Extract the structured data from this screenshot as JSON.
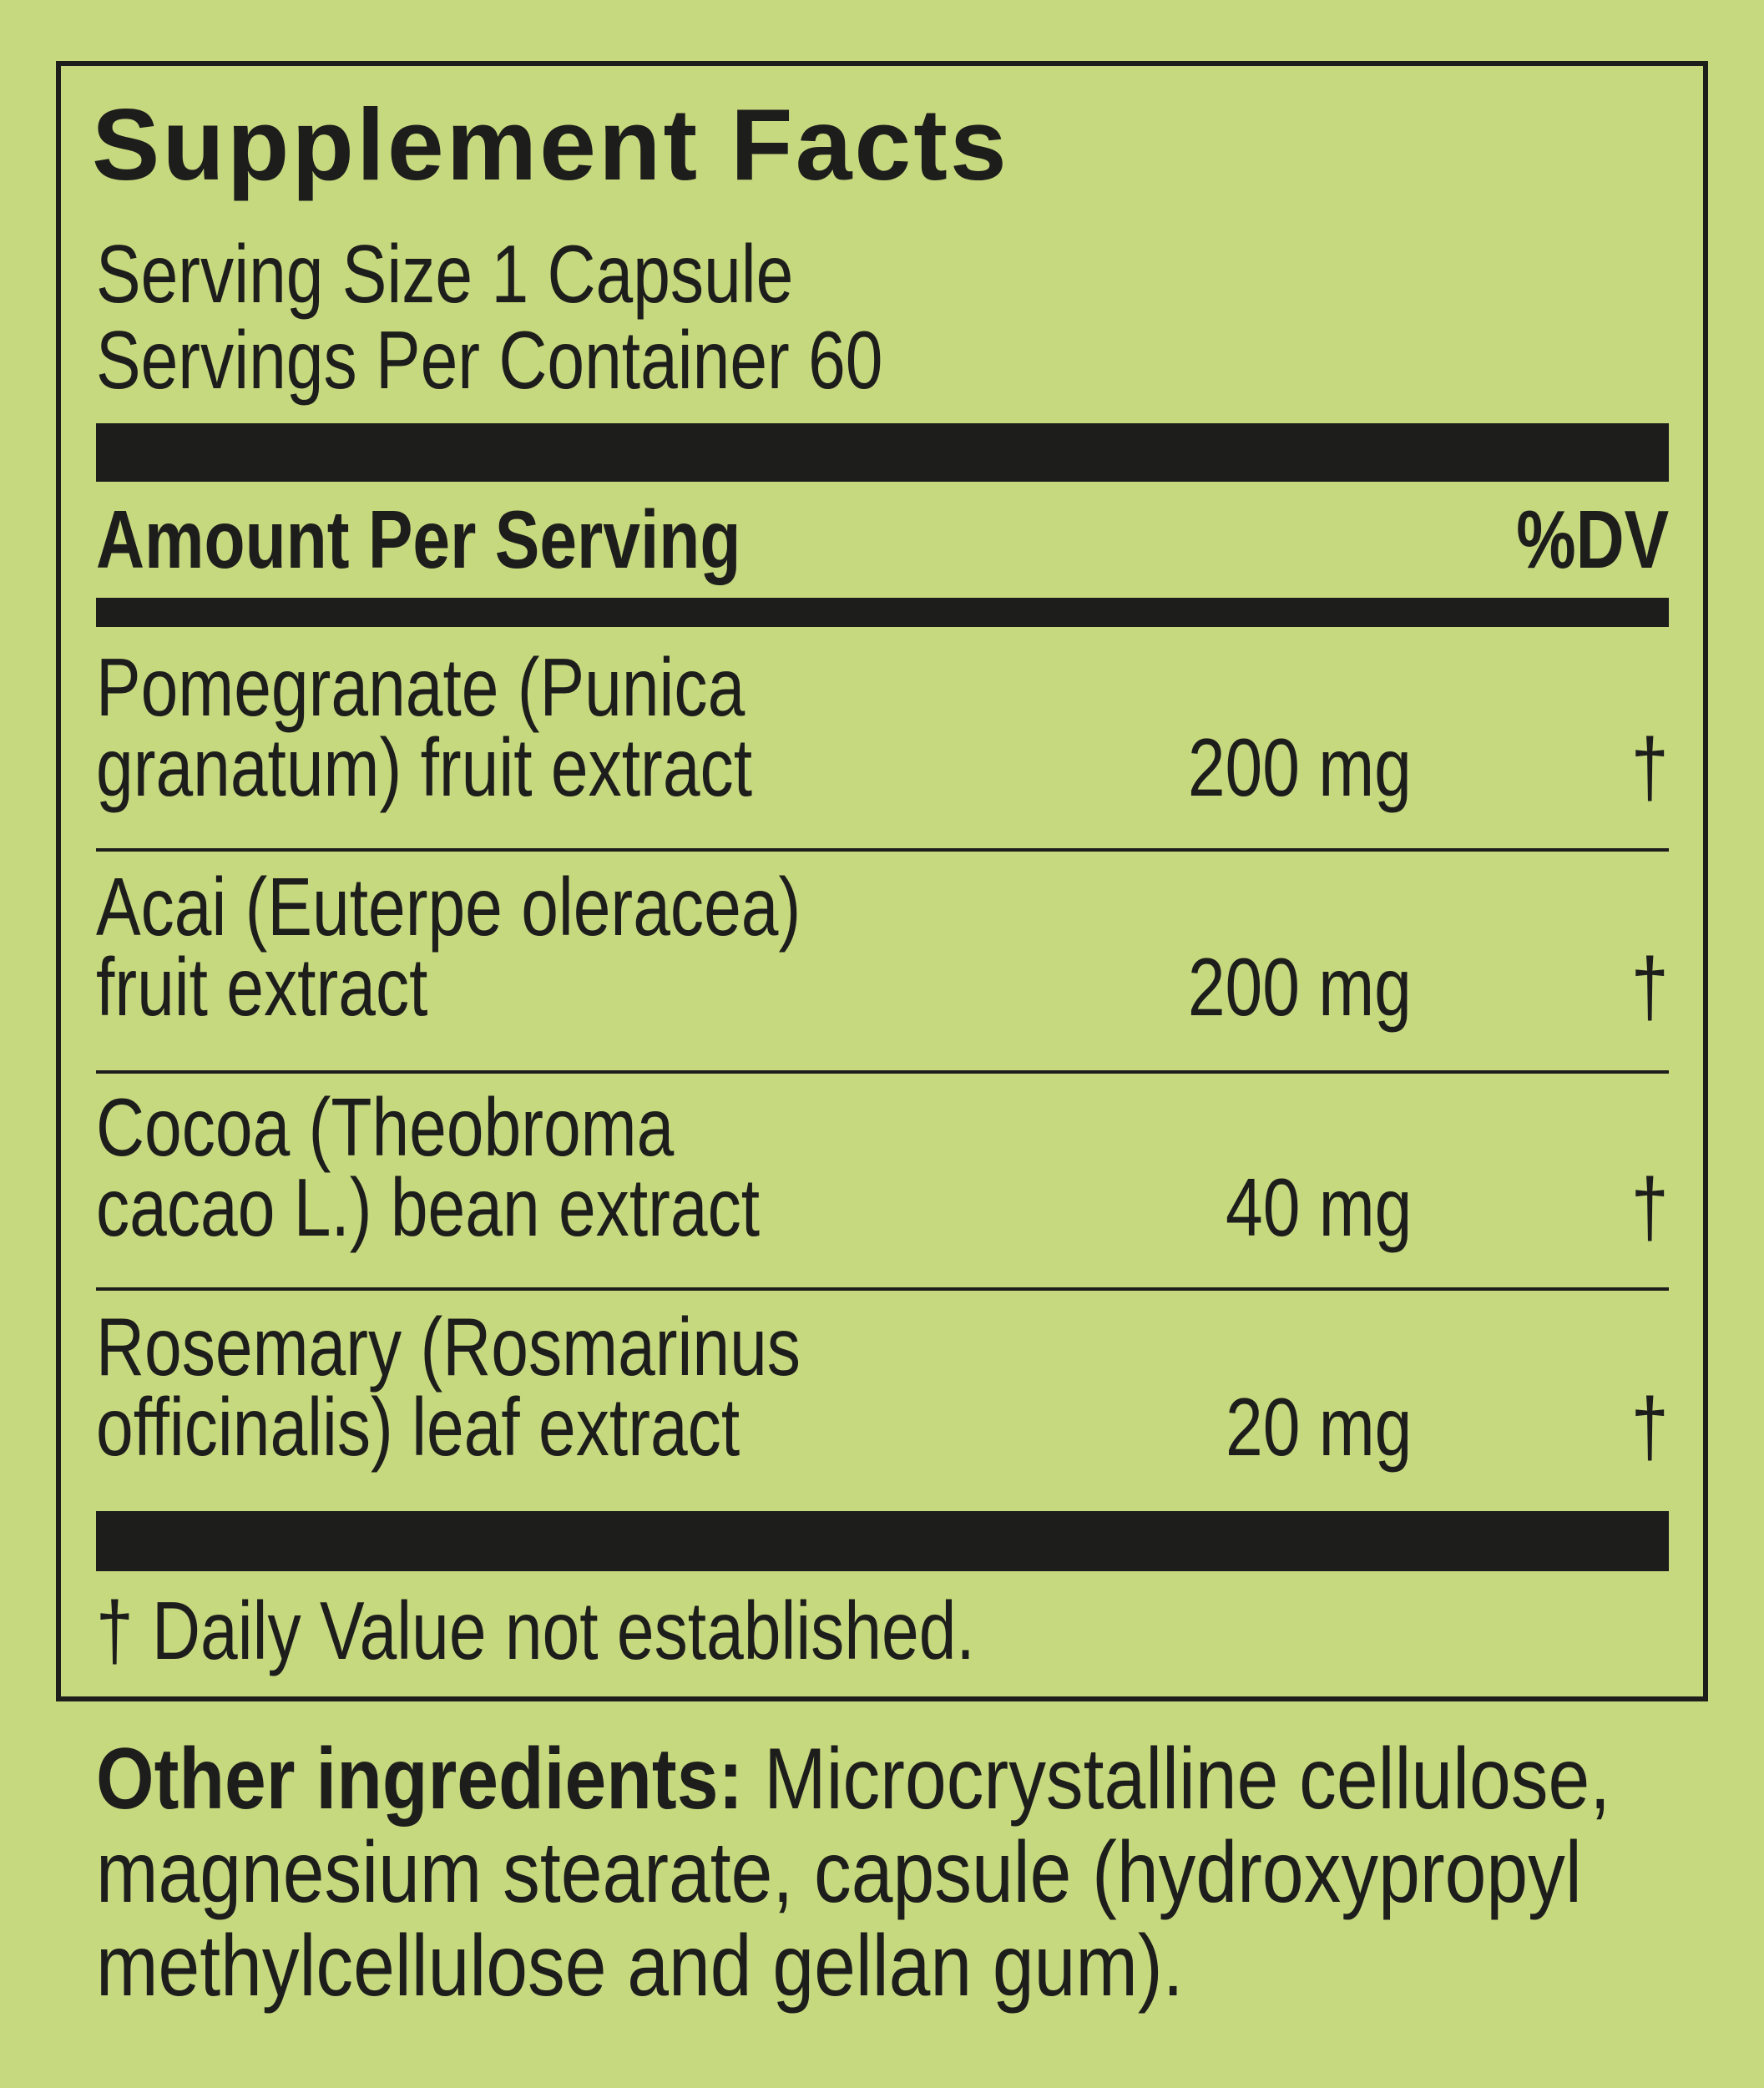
{
  "title": "Supplement Facts",
  "serving_size": "Serving Size 1 Capsule",
  "servings_per_container": "Servings Per Container 60",
  "header": {
    "amount_label": "Amount Per Serving",
    "dv_label": "%DV"
  },
  "ingredients": [
    {
      "name_line1": "Pomegranate (Punica",
      "name_line2": "granatum) fruit extract",
      "amount": "200 mg",
      "dv": "†"
    },
    {
      "name_line1": "Acai (Euterpe oleracea)",
      "name_line2": "fruit extract",
      "amount": "200 mg",
      "dv": "†"
    },
    {
      "name_line1": "Cocoa (Theobroma",
      "name_line2": "cacao L.) bean extract",
      "amount": "40 mg",
      "dv": "†"
    },
    {
      "name_line1": "Rosemary (Rosmarinus",
      "name_line2": "officinalis) leaf extract",
      "amount": "20 mg",
      "dv": "†"
    }
  ],
  "footnote": "† Daily Value not established.",
  "other_ingredients": {
    "label": "Other ingredients:",
    "lines": [
      " Microcrystalline cellulose,",
      "magnesium stearate, capsule (hydroxypropyl",
      "methylcellulose and gellan gum)."
    ]
  },
  "colors": {
    "background": "#c6d97e",
    "ink": "#1d1d1b"
  }
}
